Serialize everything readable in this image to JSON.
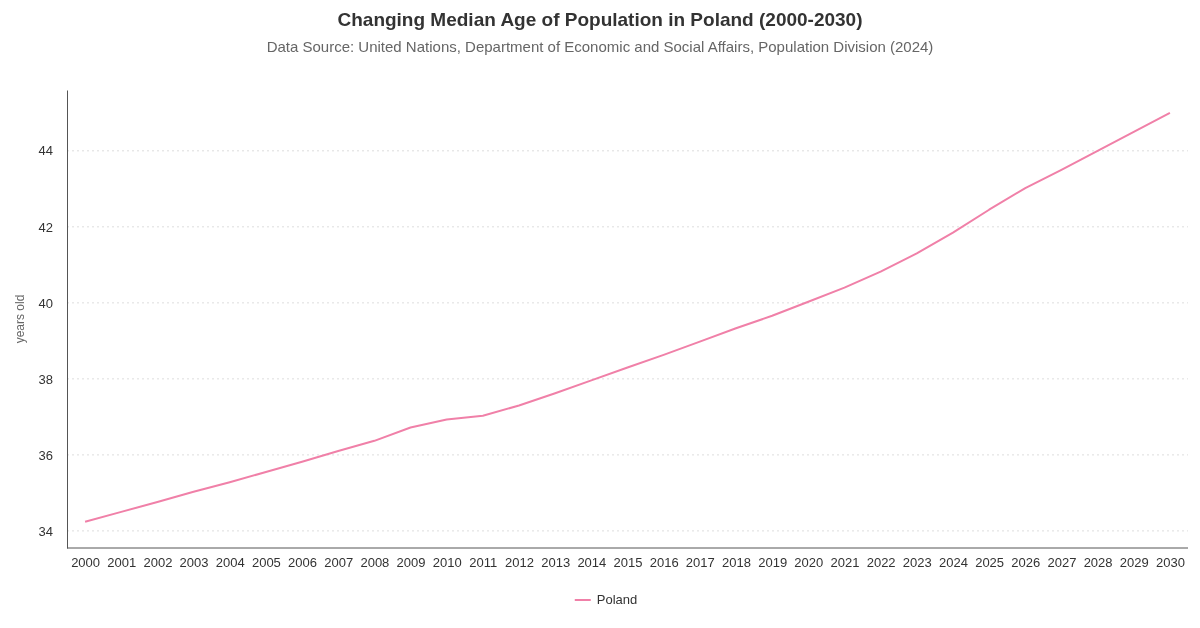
{
  "chart_data": {
    "type": "line",
    "title": "Changing Median Age of Population in Poland (2000-2030)",
    "subtitle": "Data Source: United Nations, Department of Economic and Social Affairs, Population Division (2024)",
    "ylabel": "years old",
    "categories": [
      "2000",
      "2001",
      "2002",
      "2003",
      "2004",
      "2005",
      "2006",
      "2007",
      "2008",
      "2009",
      "2010",
      "2011",
      "2012",
      "2013",
      "2014",
      "2015",
      "2016",
      "2017",
      "2018",
      "2019",
      "2020",
      "2021",
      "2022",
      "2023",
      "2024",
      "2025",
      "2026",
      "2027",
      "2028",
      "2029",
      "2030"
    ],
    "series": [
      {
        "name": "Poland",
        "color": "#f080a8",
        "values": [
          34.24,
          34.5,
          34.76,
          35.03,
          35.28,
          35.55,
          35.82,
          36.1,
          36.37,
          36.72,
          36.93,
          37.03,
          37.3,
          37.62,
          37.96,
          38.3,
          38.63,
          38.98,
          39.33,
          39.66,
          40.03,
          40.4,
          40.82,
          41.3,
          41.85,
          42.45,
          43.02,
          43.5,
          44.0,
          44.5,
          45.0
        ]
      }
    ],
    "ylim": [
      33.55,
      45.6
    ],
    "yticks": [
      34,
      36,
      38,
      40,
      42,
      44
    ],
    "grid": "y",
    "legend": "bottom",
    "marker": "none",
    "line_style": "solid"
  }
}
